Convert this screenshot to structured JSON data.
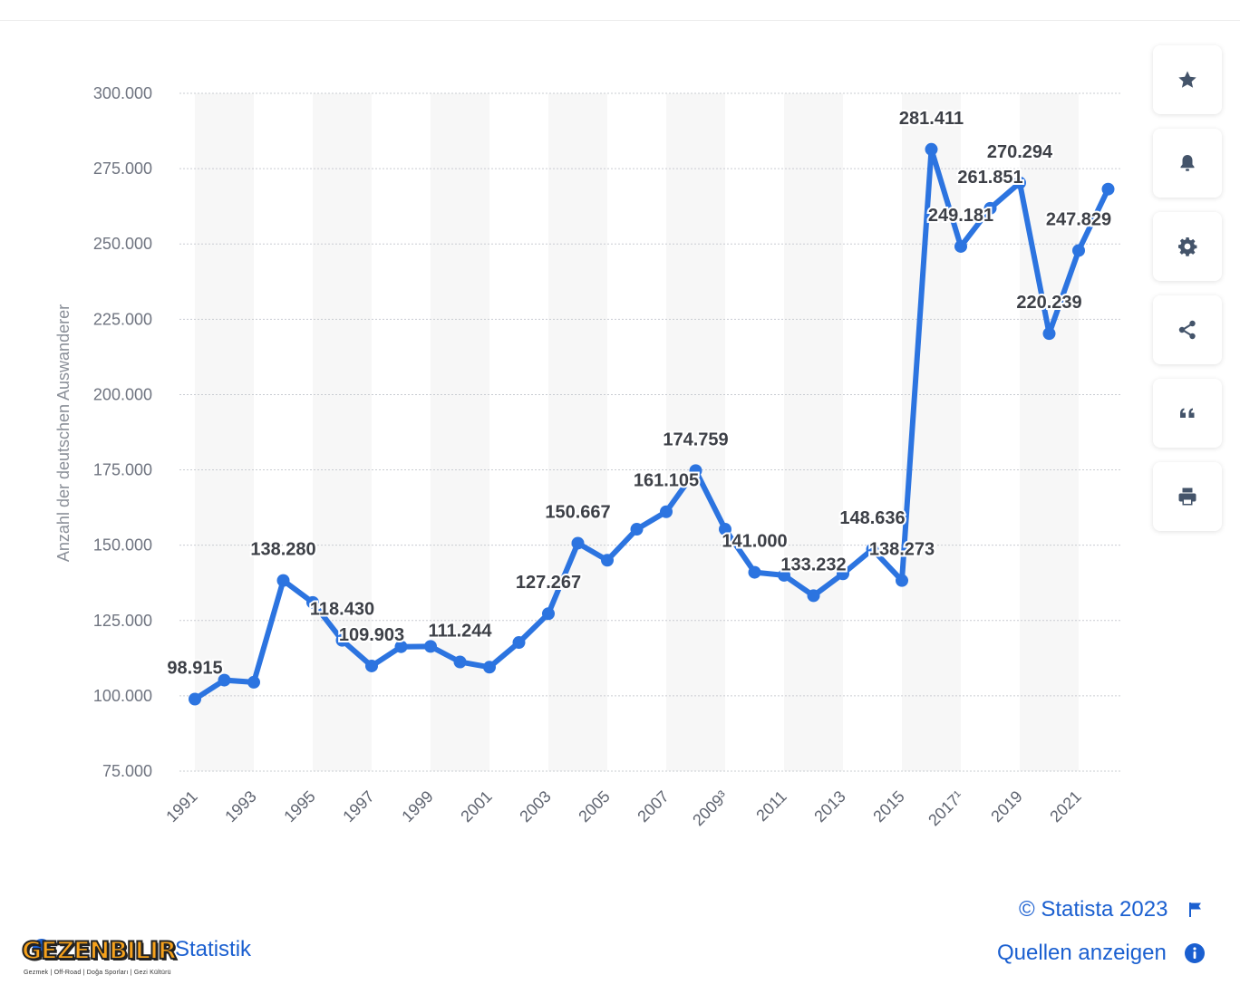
{
  "chart_data": {
    "type": "line",
    "title": "",
    "xlabel": "",
    "ylabel": "Anzahl der deutschen Auswanderer",
    "ylim": [
      75000,
      300000
    ],
    "yticks": [
      75000,
      100000,
      125000,
      150000,
      175000,
      200000,
      225000,
      250000,
      275000,
      300000
    ],
    "ytick_labels": [
      "75.000",
      "100.000",
      "125.000",
      "150.000",
      "175.000",
      "200.000",
      "225.000",
      "250.000",
      "275.000",
      "300.000"
    ],
    "x": [
      "1991",
      "1992",
      "1993",
      "1994",
      "1995",
      "1996",
      "1997",
      "1998",
      "1999",
      "2000",
      "2001",
      "2002",
      "2003",
      "2004",
      "2005",
      "2006",
      "2007",
      "2008",
      "2009³",
      "2010",
      "2011",
      "2012",
      "2013",
      "2014",
      "2015",
      "2016",
      "2017¹",
      "2018",
      "2019",
      "2020",
      "2021",
      "2022"
    ],
    "xtick_labels": [
      "1991",
      "1993",
      "1995",
      "1997",
      "1999",
      "2001",
      "2003",
      "2005",
      "2007",
      "2009³",
      "2011",
      "2013",
      "2015",
      "2017¹",
      "2019",
      "2021"
    ],
    "series": [
      {
        "name": "Auswanderer",
        "color": "#2c74e0",
        "values": [
          98915,
          105200,
          104500,
          138280,
          131000,
          118430,
          109903,
          116300,
          116400,
          111244,
          109500,
          117700,
          127267,
          150667,
          145000,
          155300,
          161105,
          174759,
          155300,
          141000,
          140000,
          133232,
          140500,
          148636,
          138273,
          281411,
          249181,
          261851,
          270294,
          220239,
          247829,
          268200
        ]
      }
    ],
    "data_labels": [
      {
        "index": 0,
        "text": "98.915"
      },
      {
        "index": 3,
        "text": "138.280"
      },
      {
        "index": 5,
        "text": "118.430"
      },
      {
        "index": 6,
        "text": "109.903"
      },
      {
        "index": 9,
        "text": "111.244"
      },
      {
        "index": 12,
        "text": "127.267"
      },
      {
        "index": 13,
        "text": "150.667"
      },
      {
        "index": 16,
        "text": "161.105"
      },
      {
        "index": 17,
        "text": "174.759"
      },
      {
        "index": 19,
        "text": "141.000"
      },
      {
        "index": 21,
        "text": "133.232"
      },
      {
        "index": 23,
        "text": "148.636"
      },
      {
        "index": 24,
        "text": "138.273"
      },
      {
        "index": 25,
        "text": "281.411"
      },
      {
        "index": 26,
        "text": "249.181"
      },
      {
        "index": 27,
        "text": "261.851"
      },
      {
        "index": 28,
        "text": "270.294"
      },
      {
        "index": 29,
        "text": "220.239"
      },
      {
        "index": 30,
        "text": "247.829"
      }
    ],
    "grid": true,
    "legend": "none"
  },
  "toolbar": {
    "buttons": [
      {
        "name": "favorite-button",
        "icon": "star-icon"
      },
      {
        "name": "notification-button",
        "icon": "bell-icon"
      },
      {
        "name": "settings-button",
        "icon": "gear-icon"
      },
      {
        "name": "share-button",
        "icon": "share-icon"
      },
      {
        "name": "cite-button",
        "icon": "quote-icon"
      },
      {
        "name": "print-button",
        "icon": "printer-icon"
      }
    ]
  },
  "footer": {
    "copyright": "© Statista 2023",
    "sources_link": "Quellen anzeigen",
    "stat_link": "Statistik"
  },
  "watermark": {
    "logo_text": "GEZENBILIR",
    "logo_sub": "Gezmek | Off-Road | Doğa Sporları | Gezi Kültürü"
  },
  "colors": {
    "line": "#2c74e0",
    "link": "#1a5fd0",
    "icon": "#44546a",
    "band": "#f7f7f7"
  }
}
